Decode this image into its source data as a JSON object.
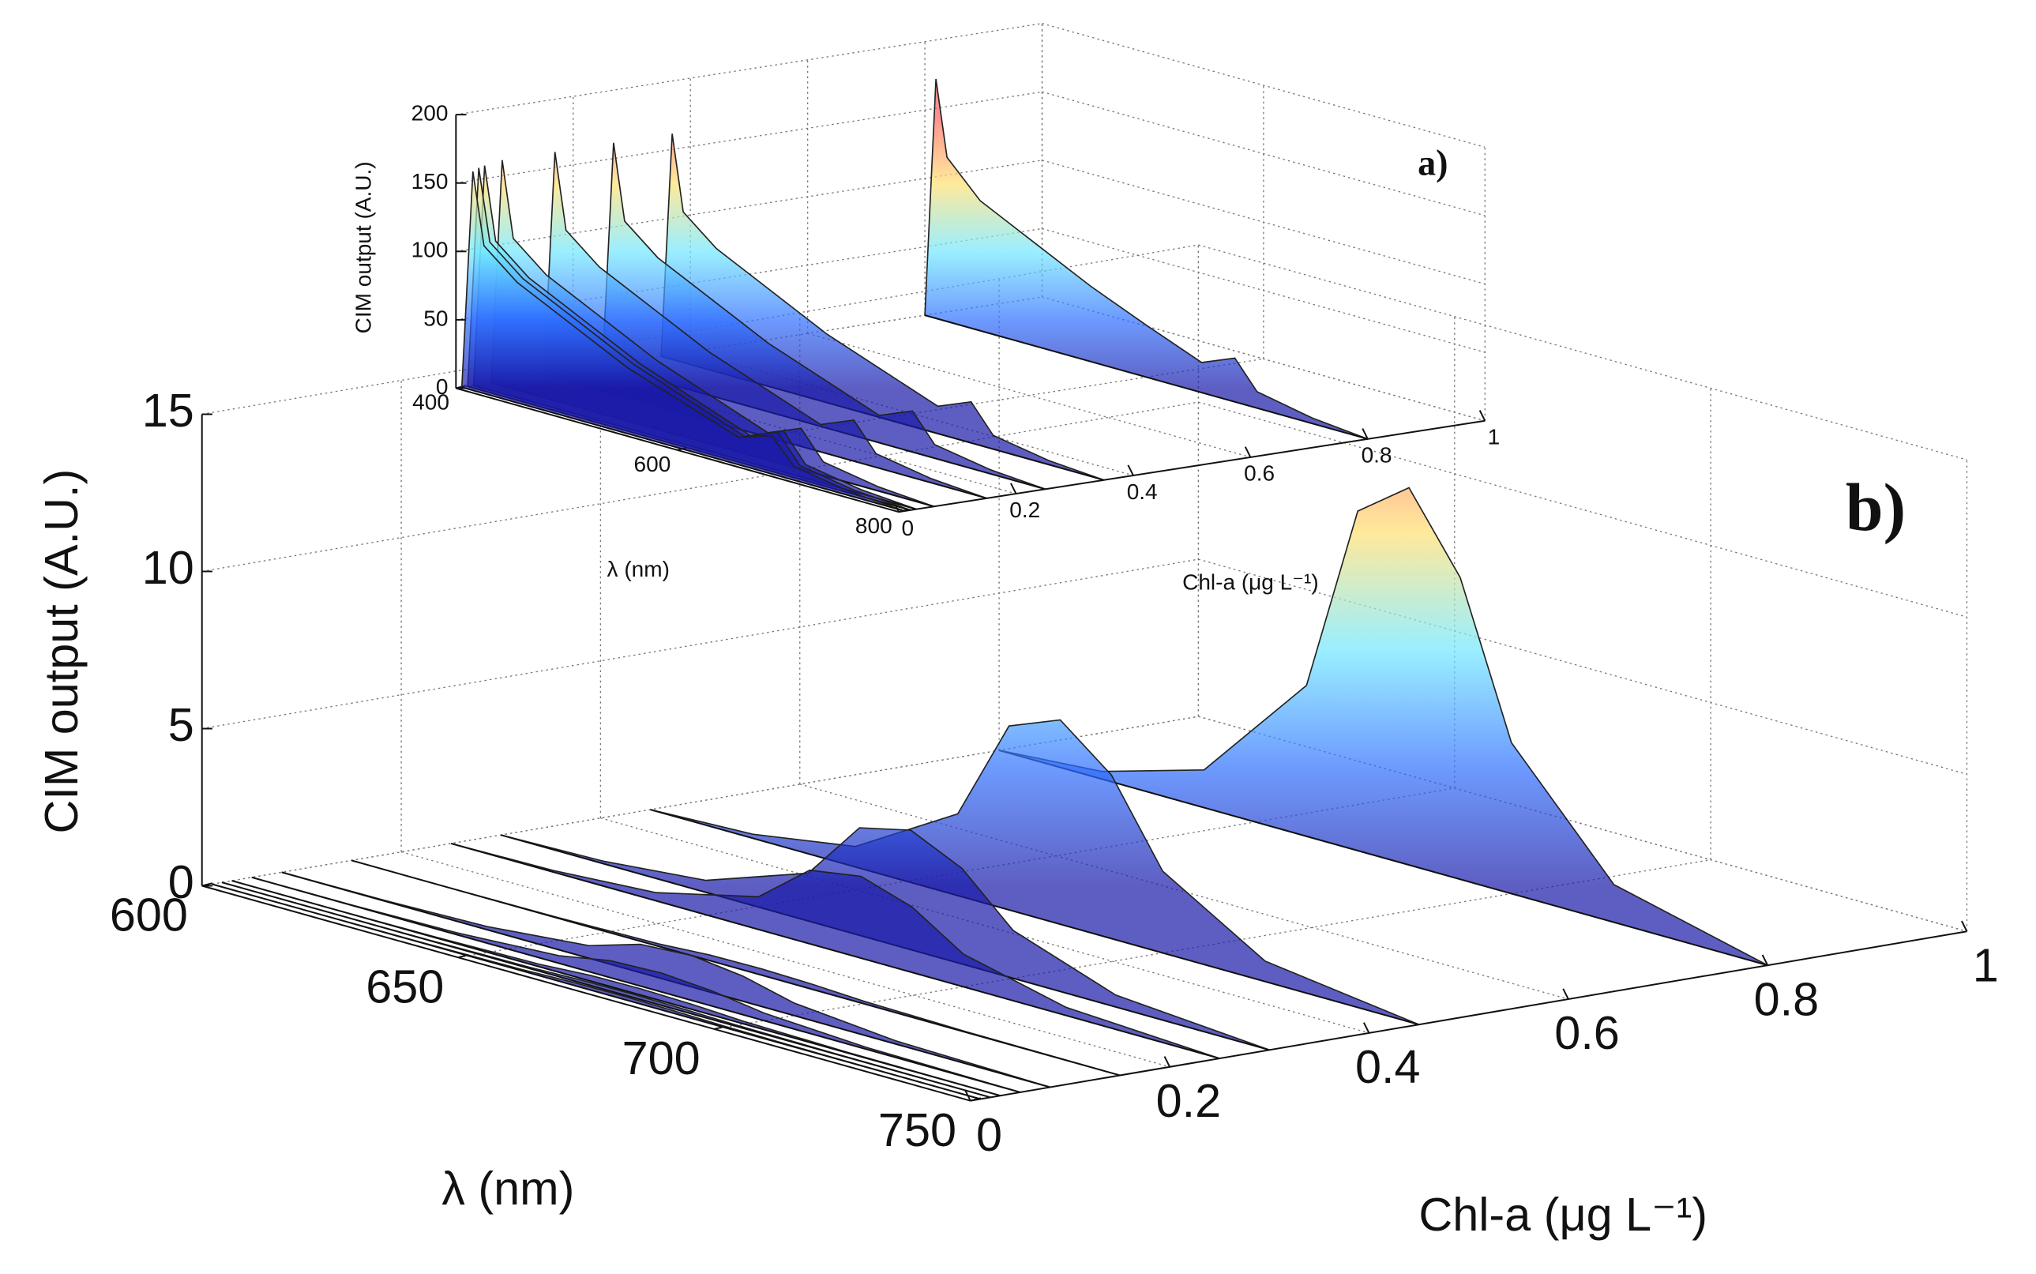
{
  "chart_data": [
    {
      "type": "waterfall3d",
      "panel_label": "b)",
      "x_label": "λ (nm)",
      "y_label": "Chl-a (μg L⁻¹)",
      "z_label": "CIM output (A.U.)",
      "xlim": [
        600,
        750
      ],
      "xticks": [
        600,
        650,
        700,
        750
      ],
      "ylim": [
        0,
        1
      ],
      "yticks": [
        0,
        0.2,
        0.4,
        0.6,
        0.8,
        1
      ],
      "zlim": [
        0,
        15
      ],
      "zticks": [
        0,
        5,
        10,
        15
      ],
      "grid": true,
      "colormap": [
        "#1a1aa8",
        "#2f6fff",
        "#6fe8ff",
        "#ffe070",
        "#ff6060"
      ],
      "wavelengths": [
        600,
        620,
        640,
        660,
        670,
        680,
        690,
        700,
        720,
        750
      ],
      "series": [
        {
          "chl": 0.01,
          "values": [
            0,
            0,
            0.01,
            0.04,
            0.09,
            0.1,
            0.08,
            0.04,
            0.01,
            0
          ]
        },
        {
          "chl": 0.02,
          "values": [
            0,
            0,
            0.01,
            0.04,
            0.09,
            0.1,
            0.08,
            0.04,
            0.01,
            0
          ]
        },
        {
          "chl": 0.03,
          "values": [
            0,
            0,
            0.02,
            0.08,
            0.18,
            0.2,
            0.16,
            0.08,
            0.02,
            0
          ]
        },
        {
          "chl": 0.05,
          "values": [
            0,
            0.01,
            0.06,
            0.24,
            0.54,
            0.6,
            0.48,
            0.24,
            0.06,
            0
          ]
        },
        {
          "chl": 0.08,
          "values": [
            0,
            0.02,
            0.1,
            0.4,
            0.9,
            1,
            0.8,
            0.4,
            0.1,
            0
          ]
        },
        {
          "chl": 0.15,
          "values": [
            0,
            0,
            0.02,
            0.08,
            0.18,
            0.2,
            0.16,
            0.08,
            0.02,
            0
          ]
        },
        {
          "chl": 0.25,
          "values": [
            0,
            0.05,
            0.26,
            1.04,
            2.34,
            2.6,
            2.08,
            1.04,
            0.26,
            0
          ]
        },
        {
          "chl": 0.3,
          "values": [
            0,
            0.08,
            0.38,
            1.52,
            3.42,
            3.8,
            3.04,
            1.52,
            0.38,
            0
          ]
        },
        {
          "chl": 0.45,
          "values": [
            0,
            0.13,
            0.65,
            2.6,
            5.85,
            6.5,
            5.2,
            2.6,
            0.65,
            0
          ]
        },
        {
          "chl": 0.8,
          "values": [
            0,
            0.24,
            1.2,
            4.8,
            10.8,
            12,
            9.6,
            4.8,
            1.2,
            0
          ]
        }
      ]
    },
    {
      "type": "waterfall3d",
      "panel_label": "a)",
      "x_label": "λ (nm)",
      "y_label": "Chl-a (μg L⁻¹)",
      "z_label": "CIM output (A.U.)",
      "xlim": [
        400,
        800
      ],
      "xticks": [
        400,
        600,
        800
      ],
      "ylim": [
        0,
        1
      ],
      "yticks": [
        0,
        0.2,
        0.4,
        0.6,
        0.8,
        1
      ],
      "zlim": [
        0,
        200
      ],
      "zticks": [
        0,
        50,
        100,
        150,
        200
      ],
      "grid": true,
      "colormap": [
        "#1a1aa8",
        "#2f6fff",
        "#6fe8ff",
        "#ffe070",
        "#ff6060"
      ],
      "wavelengths": [
        400,
        410,
        420,
        450,
        500,
        550,
        600,
        650,
        680,
        700,
        750,
        800
      ],
      "series": [
        {
          "chl": 0.01,
          "values": [
            0,
            160,
            108,
            88,
            68,
            48,
            34,
            20,
            28,
            10,
            3,
            0
          ]
        },
        {
          "chl": 0.02,
          "values": [
            0,
            162,
            110,
            90,
            70,
            50,
            35,
            20,
            30,
            10,
            3,
            0
          ]
        },
        {
          "chl": 0.03,
          "values": [
            0,
            163,
            110,
            90,
            70,
            50,
            35,
            20,
            30,
            10,
            3,
            0
          ]
        },
        {
          "chl": 0.06,
          "values": [
            0,
            165,
            110,
            90,
            70,
            50,
            35,
            20,
            30,
            10,
            3,
            0
          ]
        },
        {
          "chl": 0.15,
          "values": [
            0,
            165,
            110,
            90,
            70,
            50,
            35,
            20,
            30,
            10,
            3,
            0
          ]
        },
        {
          "chl": 0.25,
          "values": [
            0,
            165,
            110,
            90,
            70,
            50,
            35,
            20,
            30,
            10,
            3,
            0
          ]
        },
        {
          "chl": 0.35,
          "values": [
            0,
            165,
            110,
            90,
            70,
            50,
            35,
            20,
            30,
            10,
            3,
            0
          ]
        },
        {
          "chl": 0.8,
          "values": [
            0,
            175,
            120,
            95,
            75,
            55,
            38,
            22,
            32,
            12,
            4,
            0
          ]
        }
      ]
    }
  ]
}
